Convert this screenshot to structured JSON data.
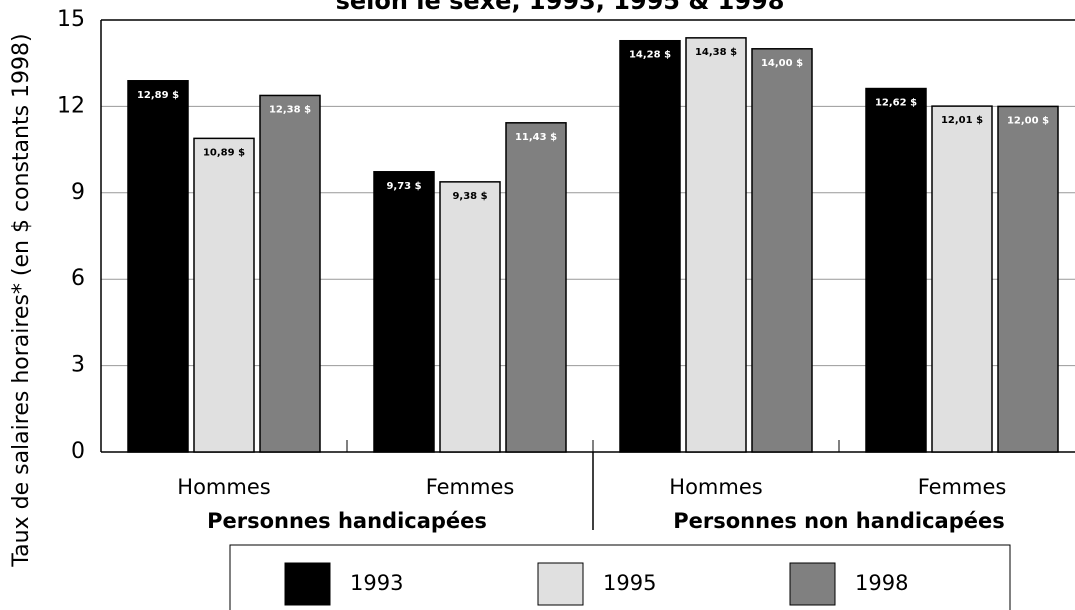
{
  "chart_data": {
    "type": "bar",
    "title": "selon le sexe, 1993, 1995 & 1998",
    "y_label": "Taux de salaires horaires* (en $ constants 1998)",
    "categories": [
      "Hommes",
      "Femmes",
      "Hommes",
      "Femmes"
    ],
    "groups": [
      "Personnes handicapées",
      "Personnes non handicapées"
    ],
    "series": [
      {
        "name": "1993",
        "color": "#000000",
        "values": [
          12.89,
          9.73,
          14.28,
          12.62
        ],
        "value_labels": [
          "12,89 $",
          "9,73 $",
          "14,28 $",
          "12,62 $"
        ]
      },
      {
        "name": "1995",
        "color": "#e0e0e0",
        "values": [
          10.89,
          9.38,
          14.38,
          12.01
        ],
        "value_labels": [
          "10,89 $",
          "9,38 $",
          "14,38 $",
          "12,01 $"
        ]
      },
      {
        "name": "1998",
        "color": "#808080",
        "values": [
          12.38,
          11.43,
          14.0,
          12.0
        ],
        "value_labels": [
          "12,38 $",
          "11,43 $",
          "14,00 $",
          "12,00 $"
        ]
      }
    ],
    "ylim": [
      0,
      15
    ],
    "yticks": [
      0,
      3,
      6,
      9,
      12,
      15
    ],
    "grid": true
  }
}
